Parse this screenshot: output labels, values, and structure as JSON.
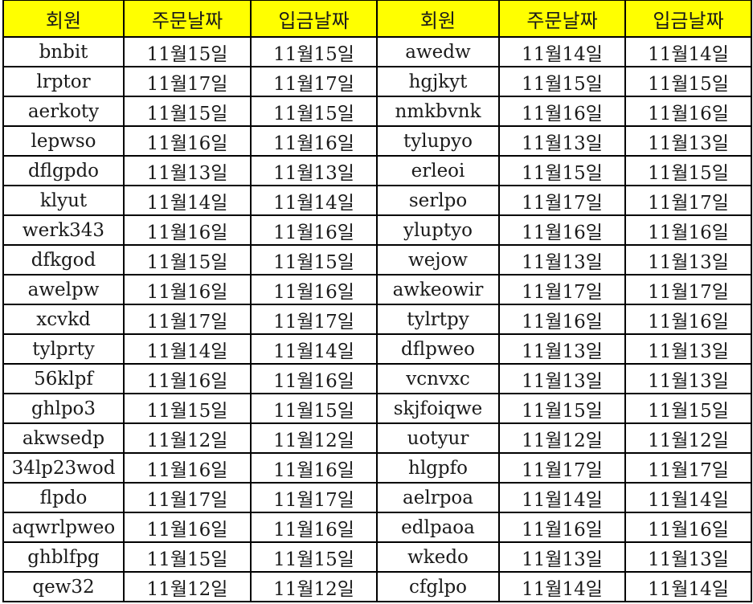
{
  "header_color": "#ffff00",
  "headers": [
    "회원",
    "주문날짜",
    "입금날짜",
    "회원",
    "주문날짜",
    "입금날짜"
  ],
  "rows": [
    [
      "bnbit",
      "11월15일",
      "11월15일",
      "awedw",
      "11월14일",
      "11월14일"
    ],
    [
      "lrptor",
      "11월17일",
      "11월17일",
      "hgjkyt",
      "11월15일",
      "11월15일"
    ],
    [
      "aerkoty",
      "11월15일",
      "11월15일",
      "nmkbvnk",
      "11월16일",
      "11월16일"
    ],
    [
      "lepwso",
      "11월16일",
      "11월16일",
      "tylupyo",
      "11월13일",
      "11월13일"
    ],
    [
      "dflgpdo",
      "11월13일",
      "11월13일",
      "erleoi",
      "11월15일",
      "11월15일"
    ],
    [
      "klyut",
      "11월14일",
      "11월14일",
      "serlpo",
      "11월17일",
      "11월17일"
    ],
    [
      "werk343",
      "11월16일",
      "11월16일",
      "yluptyo",
      "11월16일",
      "11월16일"
    ],
    [
      "dfkgod",
      "11월15일",
      "11월15일",
      "wejow",
      "11월13일",
      "11월13일"
    ],
    [
      "awelpw",
      "11월16일",
      "11월16일",
      "awkeowir",
      "11월17일",
      "11월17일"
    ],
    [
      "xcvkd",
      "11월17일",
      "11월17일",
      "tylrtpy",
      "11월16일",
      "11월16일"
    ],
    [
      "tylprty",
      "11월14일",
      "11월14일",
      "dflpweo",
      "11월13일",
      "11월13일"
    ],
    [
      "56klpf",
      "11월16일",
      "11월16일",
      "vcnvxc",
      "11월13일",
      "11월13일"
    ],
    [
      "ghlpo3",
      "11월15일",
      "11월15일",
      "skjfoiqwe",
      "11월15일",
      "11월15일"
    ],
    [
      "akwsedp",
      "11월12일",
      "11월12일",
      "uotyur",
      "11월12일",
      "11월12일"
    ],
    [
      "34lp23wod",
      "11월16일",
      "11월16일",
      "hlgpfo",
      "11월17일",
      "11월17일"
    ],
    [
      "flpdo",
      "11월17일",
      "11월17일",
      "aelrpoa",
      "11월14일",
      "11월14일"
    ],
    [
      "aqwrlpweo",
      "11월16일",
      "11월16일",
      "edlpaoa",
      "11월16일",
      "11월16일"
    ],
    [
      "ghblfpg",
      "11월15일",
      "11월15일",
      "wkedo",
      "11월13일",
      "11월13일"
    ],
    [
      "qew32",
      "11월12일",
      "11월12일",
      "cfglpo",
      "11월14일",
      "11월14일"
    ]
  ]
}
